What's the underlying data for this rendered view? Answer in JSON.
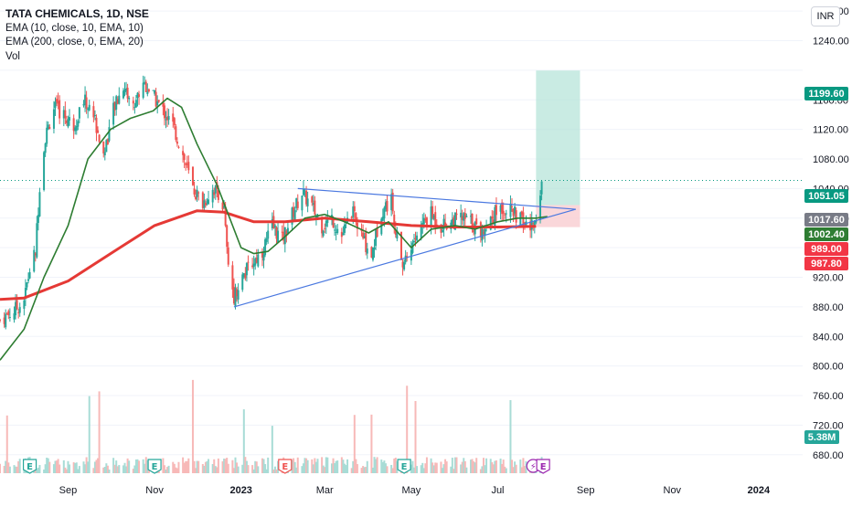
{
  "legend": {
    "title": "TATA CHEMICALS, 1D, NSE",
    "ema_fast": "EMA (10, close, 10, EMA, 10)",
    "ema_slow": "EMA (200, close, 0, EMA, 20)",
    "vol": "Vol"
  },
  "currency_label": "INR",
  "colors": {
    "up": "#26a69a",
    "down": "#ef5350",
    "ema_fast": "#2e7d32",
    "ema_slow": "#e53935",
    "trendline": "#4a78e0",
    "target_zone": "#b7e4d9",
    "stop_zone": "#f9d0d4",
    "price_tag_green": "#089981",
    "price_tag_grey": "#787b86",
    "price_tag_red": "#f23645",
    "price_tag_darkgreen": "#2e7d32"
  },
  "chart_data": {
    "type": "candlestick",
    "title": "TATA CHEMICALS, 1D, NSE",
    "y_axis": {
      "ticks": [
        1280,
        1240,
        1200,
        1160,
        1120,
        1080,
        1040,
        1000,
        960,
        920,
        880,
        840,
        800,
        760,
        720,
        680
      ],
      "ylim": [
        655,
        1295
      ],
      "labels": [
        "1280.00",
        "1240.00",
        "",
        "1160.00",
        "1120.00",
        "1080.00",
        "1040.00",
        "1000.00",
        "960.00",
        "920.00",
        "880.00",
        "840.00",
        "800.00",
        "760.00",
        "720.00",
        "680.00"
      ]
    },
    "x_axis": {
      "labels": [
        "Sep",
        "Nov",
        "2023",
        "Mar",
        "May",
        "Jul",
        "Sep",
        "Nov",
        "2024"
      ],
      "positions": [
        "2022-09-01",
        "2022-11-01",
        "2023-01-01",
        "2023-03-01",
        "2023-05-01",
        "2023-07-01",
        "2023-09-01",
        "2023-11-01",
        "2024-01-01"
      ],
      "start": "2022-07-15",
      "end": "2024-02-01"
    },
    "price_tags": [
      {
        "value": 1199.6,
        "label": "1199.60",
        "color": "#089981"
      },
      {
        "value": 1051.05,
        "label": "1051.05",
        "color": "#089981"
      },
      {
        "value": 1017.6,
        "label": "1017.60",
        "color": "#787b86"
      },
      {
        "value": 1002.4,
        "label": "1002.40",
        "color": "#2e7d32"
      },
      {
        "value": 989.0,
        "label": "989.00",
        "color": "#f23645"
      },
      {
        "value": 987.8,
        "label": "987.80",
        "color": "#f23645"
      }
    ],
    "volume_tag": {
      "label": "5.38M",
      "color": "#26a69a"
    },
    "close_price": [
      [
        "2022-07-15",
        862
      ],
      [
        "2022-07-25",
        875
      ],
      [
        "2022-08-01",
        890
      ],
      [
        "2022-08-05",
        930
      ],
      [
        "2022-08-09",
        955
      ],
      [
        "2022-08-12",
        1045
      ],
      [
        "2022-08-16",
        1110
      ],
      [
        "2022-08-22",
        1150
      ],
      [
        "2022-08-29",
        1140
      ],
      [
        "2022-09-05",
        1125
      ],
      [
        "2022-09-12",
        1160
      ],
      [
        "2022-09-19",
        1140
      ],
      [
        "2022-09-26",
        1085
      ],
      [
        "2022-10-03",
        1145
      ],
      [
        "2022-10-10",
        1180
      ],
      [
        "2022-10-17",
        1150
      ],
      [
        "2022-10-24",
        1185
      ],
      [
        "2022-10-31",
        1165
      ],
      [
        "2022-11-07",
        1145
      ],
      [
        "2022-11-14",
        1125
      ],
      [
        "2022-11-21",
        1085
      ],
      [
        "2022-11-28",
        1040
      ],
      [
        "2022-12-05",
        1020
      ],
      [
        "2022-12-12",
        1040
      ],
      [
        "2022-12-16",
        1035
      ],
      [
        "2022-12-20",
        1010
      ],
      [
        "2022-12-23",
        930
      ],
      [
        "2022-12-27",
        895
      ],
      [
        "2023-01-02",
        920
      ],
      [
        "2023-01-09",
        940
      ],
      [
        "2023-01-16",
        955
      ],
      [
        "2023-01-23",
        990
      ],
      [
        "2023-01-30",
        970
      ],
      [
        "2023-02-06",
        1005
      ],
      [
        "2023-02-13",
        1035
      ],
      [
        "2023-02-20",
        1015
      ],
      [
        "2023-02-27",
        990
      ],
      [
        "2023-03-06",
        1000
      ],
      [
        "2023-03-13",
        975
      ],
      [
        "2023-03-20",
        1010
      ],
      [
        "2023-03-27",
        975
      ],
      [
        "2023-04-03",
        950
      ],
      [
        "2023-04-10",
        1010
      ],
      [
        "2023-04-17",
        1025
      ],
      [
        "2023-04-24",
        935
      ],
      [
        "2023-05-01",
        960
      ],
      [
        "2023-05-08",
        990
      ],
      [
        "2023-05-15",
        1005
      ],
      [
        "2023-05-22",
        990
      ],
      [
        "2023-05-29",
        995
      ],
      [
        "2023-06-05",
        1000
      ],
      [
        "2023-06-12",
        995
      ],
      [
        "2023-06-19",
        980
      ],
      [
        "2023-06-26",
        1000
      ],
      [
        "2023-07-03",
        1015
      ],
      [
        "2023-07-10",
        1010
      ],
      [
        "2023-07-17",
        998
      ],
      [
        "2023-07-24",
        985
      ],
      [
        "2023-07-28",
        1002
      ],
      [
        "2023-08-01",
        1051
      ]
    ],
    "ema_fast": [
      [
        "2022-07-15",
        808
      ],
      [
        "2022-08-01",
        850
      ],
      [
        "2022-08-15",
        920
      ],
      [
        "2022-09-01",
        990
      ],
      [
        "2022-09-15",
        1080
      ],
      [
        "2022-10-01",
        1120
      ],
      [
        "2022-10-15",
        1135
      ],
      [
        "2022-10-31",
        1145
      ],
      [
        "2022-11-10",
        1162
      ],
      [
        "2022-11-20",
        1150
      ],
      [
        "2022-12-01",
        1100
      ],
      [
        "2022-12-15",
        1045
      ],
      [
        "2022-12-24",
        1000
      ],
      [
        "2023-01-01",
        960
      ],
      [
        "2023-01-10",
        952
      ],
      [
        "2023-01-20",
        955
      ],
      [
        "2023-02-01",
        975
      ],
      [
        "2023-02-15",
        1000
      ],
      [
        "2023-03-01",
        1005
      ],
      [
        "2023-03-15",
        995
      ],
      [
        "2023-04-01",
        980
      ],
      [
        "2023-04-15",
        995
      ],
      [
        "2023-05-01",
        960
      ],
      [
        "2023-05-15",
        985
      ],
      [
        "2023-06-01",
        990
      ],
      [
        "2023-06-15",
        985
      ],
      [
        "2023-07-01",
        995
      ],
      [
        "2023-07-15",
        1000
      ],
      [
        "2023-07-28",
        1000
      ],
      [
        "2023-08-05",
        1002
      ]
    ],
    "ema_slow": [
      [
        "2022-07-15",
        890
      ],
      [
        "2022-08-01",
        892
      ],
      [
        "2022-09-01",
        915
      ],
      [
        "2022-10-01",
        952
      ],
      [
        "2022-11-01",
        990
      ],
      [
        "2022-12-01",
        1010
      ],
      [
        "2022-12-20",
        1008
      ],
      [
        "2023-01-10",
        995
      ],
      [
        "2023-02-01",
        995
      ],
      [
        "2023-03-01",
        1000
      ],
      [
        "2023-04-01",
        995
      ],
      [
        "2023-05-01",
        990
      ],
      [
        "2023-06-01",
        988
      ],
      [
        "2023-07-01",
        988
      ],
      [
        "2023-07-28",
        989
      ]
    ],
    "triangle": {
      "upper": [
        [
          "2023-02-10",
          1040
        ],
        [
          "2023-08-25",
          1012
        ]
      ],
      "lower": [
        [
          "2022-12-27",
          880
        ],
        [
          "2023-08-25",
          1012
        ]
      ]
    },
    "position_tool": {
      "x_start": "2023-07-28",
      "x_end": "2023-08-28",
      "entry": 1017.6,
      "target": 1199.6,
      "stop": 987.8
    },
    "event_markers": [
      {
        "date": "2022-08-05",
        "letter": "E",
        "color": "#26a69a"
      },
      {
        "date": "2022-11-01",
        "letter": "E",
        "color": "#26a69a"
      },
      {
        "date": "2023-02-01",
        "letter": "E",
        "color": "#ef5350"
      },
      {
        "date": "2023-04-26",
        "letter": "E",
        "color": "#26a69a"
      },
      {
        "date": "2023-07-26",
        "letter": "⚡",
        "color": "#9c27b0"
      },
      {
        "date": "2023-08-02",
        "letter": "E",
        "color": "#9c27b0"
      }
    ]
  }
}
